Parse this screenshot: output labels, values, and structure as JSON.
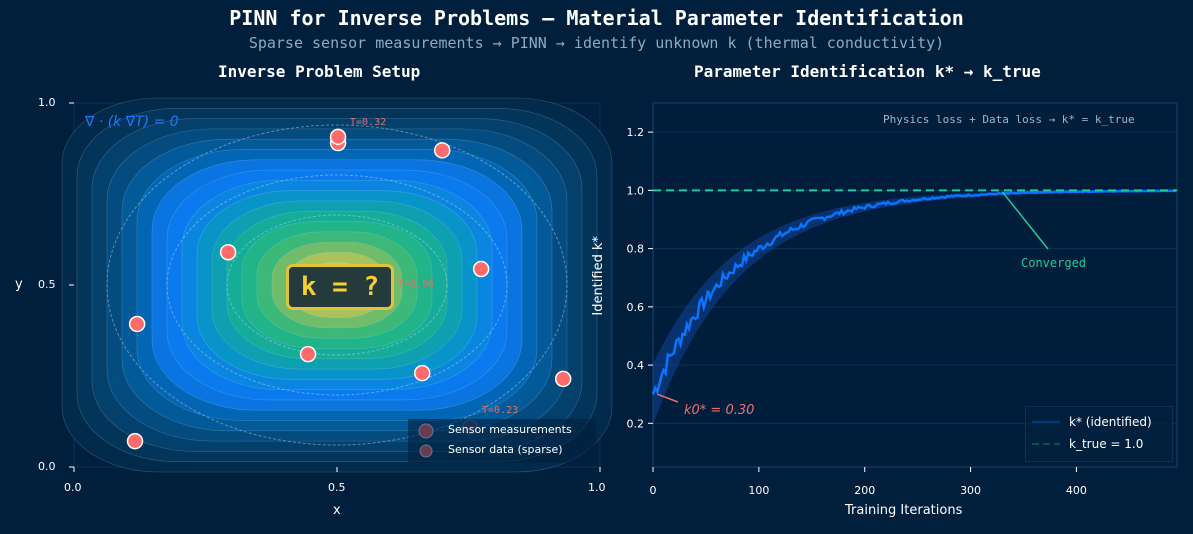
{
  "title": "PINN for Inverse Problems — Material Parameter Identification",
  "subtitle": "Sparse sensor measurements  →  PINN  →  identify unknown k (thermal conductivity)",
  "chart_data": [
    {
      "type": "contour",
      "title": "Inverse Problem Setup",
      "xlabel": "x",
      "ylabel": "y",
      "xlim": [
        0,
        1
      ],
      "ylim": [
        0,
        1
      ],
      "xticks": [
        "0.0",
        "0.5",
        "1.0"
      ],
      "yticks": [
        "0.0",
        "0.5",
        "1.0"
      ],
      "equation": "∇ · (k ∇T) = 0",
      "center_label": "k = ?",
      "annotations": [
        "T=0.32",
        "T=0.23",
        "T=0.96"
      ],
      "sensors": {
        "x": [
          0.502,
          0.502,
          0.7,
          0.293,
          0.774,
          0.12,
          0.445,
          0.662,
          0.93,
          0.116
        ],
        "y": [
          0.89,
          0.907,
          0.87,
          0.59,
          0.544,
          0.393,
          0.31,
          0.258,
          0.242,
          0.071
        ]
      },
      "faded_sensors": {
        "x": [
          0.753,
          0.534
        ],
        "y": [
          0.11,
          0.459
        ]
      },
      "legend": [
        "Sensor measurements",
        "Sensor data (sparse)"
      ],
      "legend_position": "lower-right",
      "colors": {
        "sensor": "#ff6b6b",
        "label": "#f5d033"
      }
    },
    {
      "type": "line",
      "title": "Parameter Identification  k* → k_true",
      "xlabel": "Training Iterations",
      "ylabel": "Identified k*",
      "xlim": [
        0,
        495
      ],
      "ylim": [
        0.05,
        1.3
      ],
      "xticks": [
        0,
        100,
        200,
        300,
        400
      ],
      "yticks": [
        0.2,
        0.4,
        0.6,
        0.8,
        1.0,
        1.2
      ],
      "series": [
        {
          "name": "k* (identified)",
          "model": "1 - 0.7*exp(-t/80)",
          "start": 0.3,
          "end": 1.0,
          "color": "#0a74ff"
        },
        {
          "name": "k_true = 1.0",
          "value": 1.0,
          "style": "dashed",
          "color": "#1fc99a"
        }
      ],
      "annotation_top": "Physics loss + Data loss → k* = k_true",
      "converged_label": "Converged",
      "converged_at": 330,
      "start_label": "k0* = 0.30",
      "legend_position": "lower-right"
    }
  ]
}
